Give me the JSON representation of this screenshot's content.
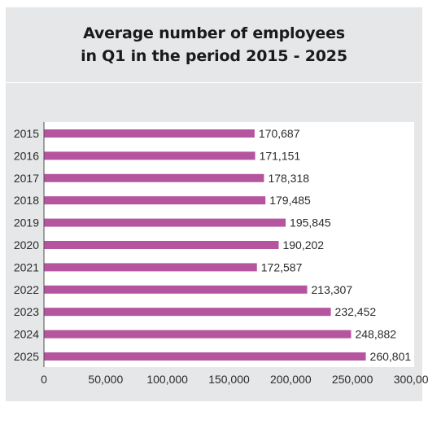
{
  "chart_data": {
    "type": "bar",
    "orientation": "horizontal",
    "title_lines": [
      "Average number of employees",
      "in Q1 in the period 2015 - 2025"
    ],
    "categories": [
      "2015",
      "2016",
      "2017",
      "2018",
      "2019",
      "2020",
      "2021",
      "2022",
      "2023",
      "2024",
      "2025"
    ],
    "values": [
      170687,
      171151,
      178318,
      179485,
      195845,
      190202,
      172587,
      213307,
      232452,
      248882,
      260801
    ],
    "value_labels": [
      "170,687",
      "171,151",
      "178,318",
      "179,485",
      "195,845",
      "190,202",
      "172,587",
      "213,307",
      "232,452",
      "248,882",
      "260,801"
    ],
    "xlim": [
      0,
      300000
    ],
    "x_ticks": [
      0,
      50000,
      100000,
      150000,
      200000,
      250000,
      300000
    ],
    "x_tick_labels": [
      "0",
      "50,000",
      "100,000",
      "150,000",
      "200,000",
      "250,000",
      "300,000"
    ],
    "bar_color": "#b5559f",
    "background_color": "#e6e7e8",
    "grid": false
  }
}
